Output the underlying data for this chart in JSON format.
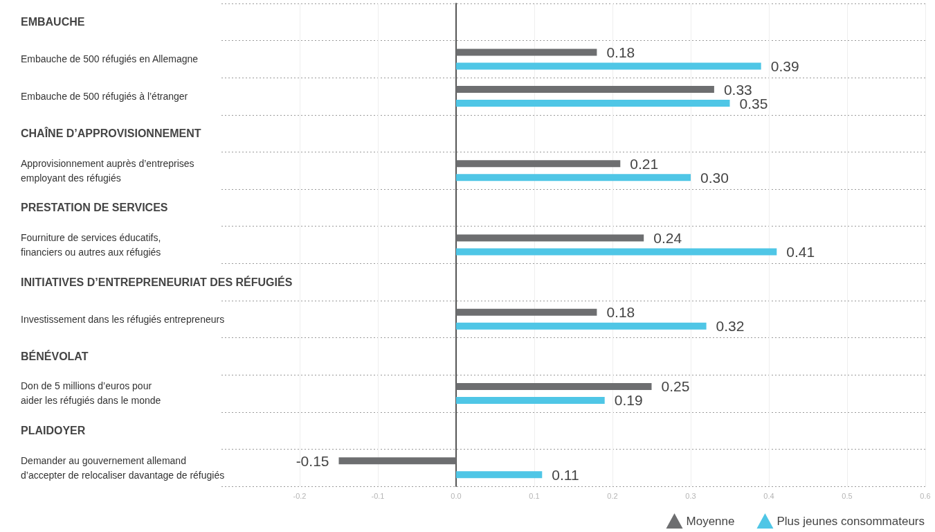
{
  "chart_data": {
    "type": "bar",
    "orientation": "horizontal",
    "categories": [
      "EMBAUCHE",
      "Embauche de 500 réfugiés en Allemagne",
      "Embauche de 500 réfugiés à l’étranger",
      "CHAÎNE D’APPROVISIONNEMENT",
      "Approvisionnement auprès d’entreprises\nemployant des réfugiés",
      "PRESTATION DE SERVICES",
      "Fourniture de services éducatifs,\nfinanciers ou autres aux réfugiés",
      "INITIATIVES D’ENTREPRENEURIAT DES RÉFUGIÉS",
      "Investissement dans les réfugiés entrepreneurs",
      "BÉNÉVOLAT",
      "Don de 5 millions d’euros pour\naider les réfugiés dans le monde",
      "PLAIDOYER",
      "Demander au gouvernement allemand\nd’accepter de relocaliser davantage de réfugiés"
    ],
    "series": [
      {
        "name": "Moyenne",
        "color": "#6d6e70",
        "values": [
          null,
          0.18,
          0.33,
          null,
          0.21,
          null,
          0.24,
          null,
          0.18,
          null,
          0.25,
          null,
          -0.15
        ],
        "value_labels": [
          null,
          "0.18",
          "0.33",
          null,
          "0.21",
          null,
          "0.24",
          null,
          "0.18",
          null,
          "0.25",
          null,
          "-0.15"
        ]
      },
      {
        "name": "Plus jeunes consommateurs",
        "color": "#4fc6e6",
        "values": [
          null,
          0.39,
          0.35,
          null,
          0.3,
          null,
          0.41,
          null,
          0.32,
          null,
          0.19,
          null,
          0.11
        ],
        "value_labels": [
          null,
          "0.39",
          "0.35",
          null,
          "0.30",
          null,
          "0.41",
          null,
          "0.32",
          null,
          "0.19",
          null,
          "0.11"
        ]
      }
    ],
    "xlim": [
      -0.3,
      0.6
    ],
    "xticks": [
      -0.2,
      -0.1,
      {
        "value": 0,
        "label": "0.0"
      },
      0.1,
      0.2,
      0.3,
      0.4,
      0.5,
      0.6
    ],
    "grid": true,
    "legend": "bottom right",
    "marker": "triangle"
  }
}
